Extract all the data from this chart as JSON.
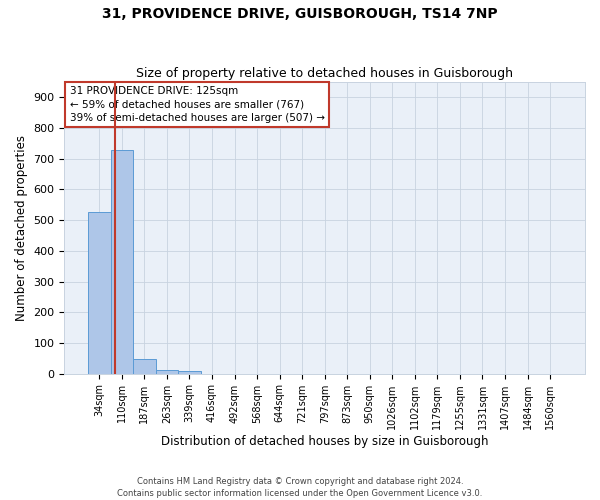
{
  "title_line1": "31, PROVIDENCE DRIVE, GUISBOROUGH, TS14 7NP",
  "title_line2": "Size of property relative to detached houses in Guisborough",
  "xlabel": "Distribution of detached houses by size in Guisborough",
  "ylabel": "Number of detached properties",
  "footnote": "Contains HM Land Registry data © Crown copyright and database right 2024.\nContains public sector information licensed under the Open Government Licence v3.0.",
  "categories": [
    "34sqm",
    "110sqm",
    "187sqm",
    "263sqm",
    "339sqm",
    "416sqm",
    "492sqm",
    "568sqm",
    "644sqm",
    "721sqm",
    "797sqm",
    "873sqm",
    "950sqm",
    "1026sqm",
    "1102sqm",
    "1179sqm",
    "1255sqm",
    "1331sqm",
    "1407sqm",
    "1484sqm",
    "1560sqm"
  ],
  "values": [
    527,
    727,
    46,
    11,
    9,
    0,
    0,
    0,
    0,
    0,
    0,
    0,
    0,
    0,
    0,
    0,
    0,
    0,
    0,
    0,
    0
  ],
  "bar_color": "#aec6e8",
  "bar_edge_color": "#5b9bd5",
  "property_line_color": "#c0392b",
  "property_line_x": 0.697,
  "annotation_text": "31 PROVIDENCE DRIVE: 125sqm\n← 59% of detached houses are smaller (767)\n39% of semi-detached houses are larger (507) →",
  "annotation_box_edgecolor": "#c0392b",
  "ylim": [
    0,
    950
  ],
  "yticks": [
    0,
    100,
    200,
    300,
    400,
    500,
    600,
    700,
    800,
    900
  ],
  "bg_axes": "#eaf0f8",
  "grid_color": "#c8d3e0",
  "title_fontsize": 10,
  "subtitle_fontsize": 9,
  "tick_fontsize": 7,
  "label_fontsize": 8.5,
  "annot_fontsize": 7.5
}
